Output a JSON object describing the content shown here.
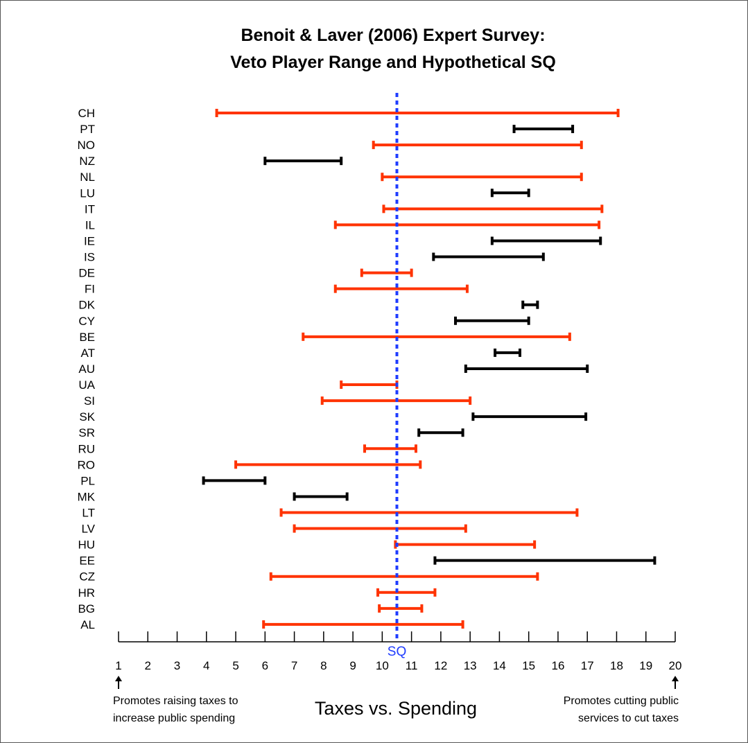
{
  "chart_data": {
    "type": "range",
    "title_lines": [
      "Benoit & Laver (2006) Expert Survey:",
      "Veto Player Range and Hypothetical SQ"
    ],
    "xlabel": "Taxes vs. Spending",
    "xlim": [
      1,
      20
    ],
    "xticks": [
      1,
      2,
      3,
      4,
      5,
      6,
      7,
      8,
      9,
      10,
      11,
      12,
      13,
      14,
      15,
      16,
      17,
      18,
      19,
      20
    ],
    "status_quo": {
      "label": "SQ",
      "value": 10.5
    },
    "left_note": [
      "Promotes raising taxes to",
      "increase public spending"
    ],
    "right_note": [
      "Promotes cutting public",
      "services to cut taxes"
    ],
    "colors": {
      "contains_sq": "#ff3300",
      "excludes_sq": "#000000",
      "sq_line": "#1f3cff"
    },
    "series": [
      {
        "label": "CH",
        "low": 4.35,
        "high": 18.05
      },
      {
        "label": "PT",
        "low": 14.5,
        "high": 16.5
      },
      {
        "label": "NO",
        "low": 9.7,
        "high": 16.8
      },
      {
        "label": "NZ",
        "low": 6.0,
        "high": 8.6
      },
      {
        "label": "NL",
        "low": 10.0,
        "high": 16.8
      },
      {
        "label": "LU",
        "low": 13.75,
        "high": 15.0
      },
      {
        "label": "IT",
        "low": 10.05,
        "high": 17.5
      },
      {
        "label": "IL",
        "low": 8.4,
        "high": 17.4
      },
      {
        "label": "IE",
        "low": 13.75,
        "high": 17.45
      },
      {
        "label": "IS",
        "low": 11.75,
        "high": 15.5
      },
      {
        "label": "DE",
        "low": 9.3,
        "high": 11.0
      },
      {
        "label": "FI",
        "low": 8.4,
        "high": 12.9
      },
      {
        "label": "DK",
        "low": 14.8,
        "high": 15.3
      },
      {
        "label": "CY",
        "low": 12.5,
        "high": 15.0
      },
      {
        "label": "BE",
        "low": 7.3,
        "high": 16.4
      },
      {
        "label": "AT",
        "low": 13.85,
        "high": 14.7
      },
      {
        "label": "AU",
        "low": 12.85,
        "high": 17.0
      },
      {
        "label": "UA",
        "low": 8.6,
        "high": 10.5
      },
      {
        "label": "SI",
        "low": 7.95,
        "high": 13.0
      },
      {
        "label": "SK",
        "low": 13.1,
        "high": 16.95
      },
      {
        "label": "SR",
        "low": 11.25,
        "high": 12.75
      },
      {
        "label": "RU",
        "low": 9.4,
        "high": 11.15
      },
      {
        "label": "RO",
        "low": 5.0,
        "high": 11.3
      },
      {
        "label": "PL",
        "low": 3.9,
        "high": 6.0
      },
      {
        "label": "MK",
        "low": 7.0,
        "high": 8.8
      },
      {
        "label": "LT",
        "low": 6.55,
        "high": 16.65
      },
      {
        "label": "LV",
        "low": 7.0,
        "high": 12.85
      },
      {
        "label": "HU",
        "low": 10.45,
        "high": 15.2
      },
      {
        "label": "EE",
        "low": 11.8,
        "high": 19.3
      },
      {
        "label": "CZ",
        "low": 6.2,
        "high": 15.3
      },
      {
        "label": "HR",
        "low": 9.85,
        "high": 11.8
      },
      {
        "label": "BG",
        "low": 9.9,
        "high": 11.35
      },
      {
        "label": "AL",
        "low": 5.95,
        "high": 12.75
      }
    ]
  }
}
